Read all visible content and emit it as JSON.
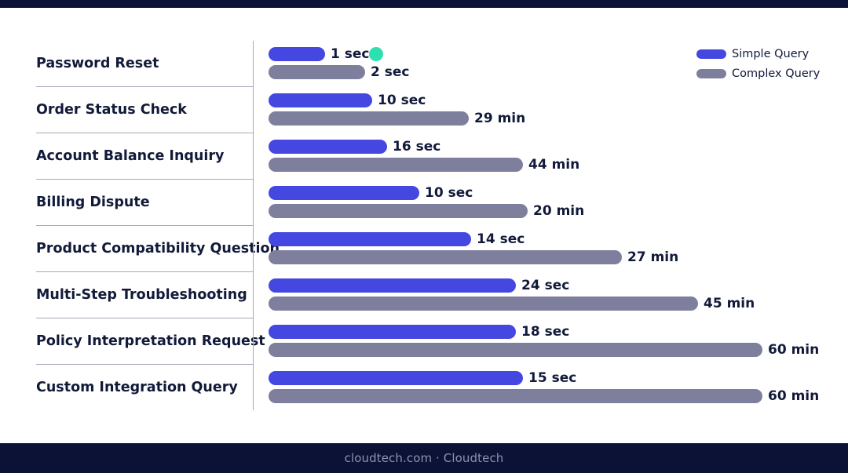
{
  "colors": {
    "simple": "#4448e0",
    "complex": "#7e7f9c",
    "accent_dot": "#2ee0b0",
    "top_bar": "#0c1136",
    "footer_bg": "#0c1136",
    "footer_text": "#8d92ad"
  },
  "footer": {
    "text": "cloudtech.com · Cloudtech"
  },
  "chart_data": {
    "type": "bar",
    "orientation": "horizontal",
    "categories": [
      "Password Reset",
      "Order Status Check",
      "Account Balance Inquiry",
      "Billing Dispute",
      "Product Compatibility Question",
      "Multi-Step Troubleshooting",
      "Policy Interpretation Request",
      "Custom Integration Query"
    ],
    "series": [
      {
        "name": "Simple Query",
        "values": [
          1,
          10,
          16,
          10,
          14,
          24,
          18,
          15
        ],
        "labels": [
          "1 sec",
          "10 sec",
          "16 sec",
          "10 sec",
          "14 sec",
          "24 sec",
          "18 sec",
          "15 sec"
        ],
        "bar_fraction": [
          0.115,
          0.21,
          0.24,
          0.305,
          0.41,
          0.5,
          0.5,
          0.515
        ]
      },
      {
        "name": "Complex Query",
        "values": [
          2,
          29,
          44,
          20,
          27,
          45,
          60,
          60
        ],
        "labels": [
          "2 sec",
          "29 min",
          "44 min",
          "20 min",
          "27 min",
          "45 min",
          "60 min",
          "60 min"
        ],
        "bar_fraction": [
          0.195,
          0.405,
          0.515,
          0.525,
          0.715,
          0.87,
          1.0,
          1.0
        ]
      }
    ],
    "legend": "top-right",
    "grid": false
  }
}
